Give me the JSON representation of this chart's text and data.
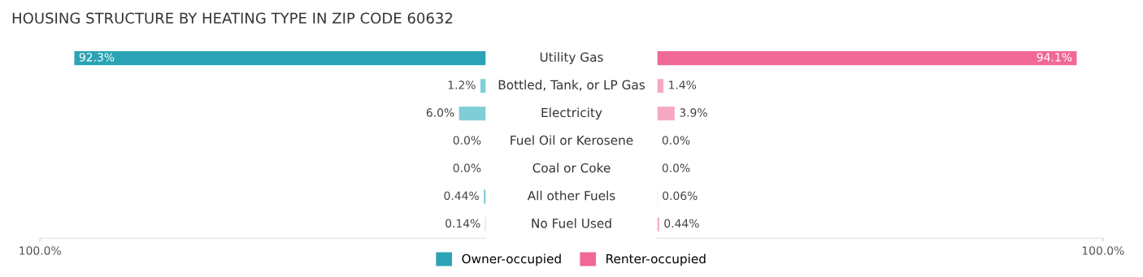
{
  "chart_data": [
    {
      "type": "bar",
      "orientation": "horizontal",
      "title": "HOUSING STRUCTURE BY HEATING TYPE IN ZIP CODE 60632",
      "categories": [
        "Utility Gas",
        "Bottled, Tank, or LP Gas",
        "Electricity",
        "Fuel Oil or Kerosene",
        "Coal or Coke",
        "All other Fuels",
        "No Fuel Used"
      ],
      "series": [
        {
          "name": "Owner-occupied",
          "color": "#2ba3b5",
          "colors": [
            "#2ba3b5",
            "#7fcdd6",
            "#7fcdd6",
            "#7fcdd6",
            "#7fcdd6",
            "#7fcdd6",
            "#7fcdd6"
          ],
          "values": [
            92.3,
            1.2,
            6.0,
            0.0,
            0.0,
            0.44,
            0.14
          ],
          "value_labels": [
            "92.3%",
            "1.2%",
            "6.0%",
            "0.0%",
            "0.0%",
            "0.44%",
            "0.14%"
          ]
        }
      ],
      "xlim": [
        100,
        0
      ],
      "xticks": [
        {
          "value": 100,
          "label": "100.0%"
        }
      ],
      "legend": "bottom",
      "grid": false
    },
    {
      "type": "bar",
      "orientation": "horizontal",
      "categories": [
        null,
        null,
        null,
        null,
        null,
        null,
        null
      ],
      "series": [
        {
          "name": "Renter-occupied",
          "color": "#f06896",
          "colors": [
            "#f06896",
            "#f5a8c3",
            "#f5a8c3",
            "#f5a8c3",
            "#f5a8c3",
            "#f5a8c3",
            "#f5a8c3"
          ],
          "values": [
            94.1,
            1.4,
            3.9,
            0.0,
            0.0,
            0.06,
            0.44
          ],
          "value_labels": [
            "94.1%",
            "1.4%",
            "3.9%",
            "0.0%",
            "0.0%",
            "0.06%",
            "0.44%"
          ]
        }
      ],
      "xlim": [
        0,
        100
      ],
      "xticks": [
        {
          "value": 100,
          "label": "100.0%"
        }
      ],
      "legend": "bottom",
      "grid": false
    }
  ]
}
